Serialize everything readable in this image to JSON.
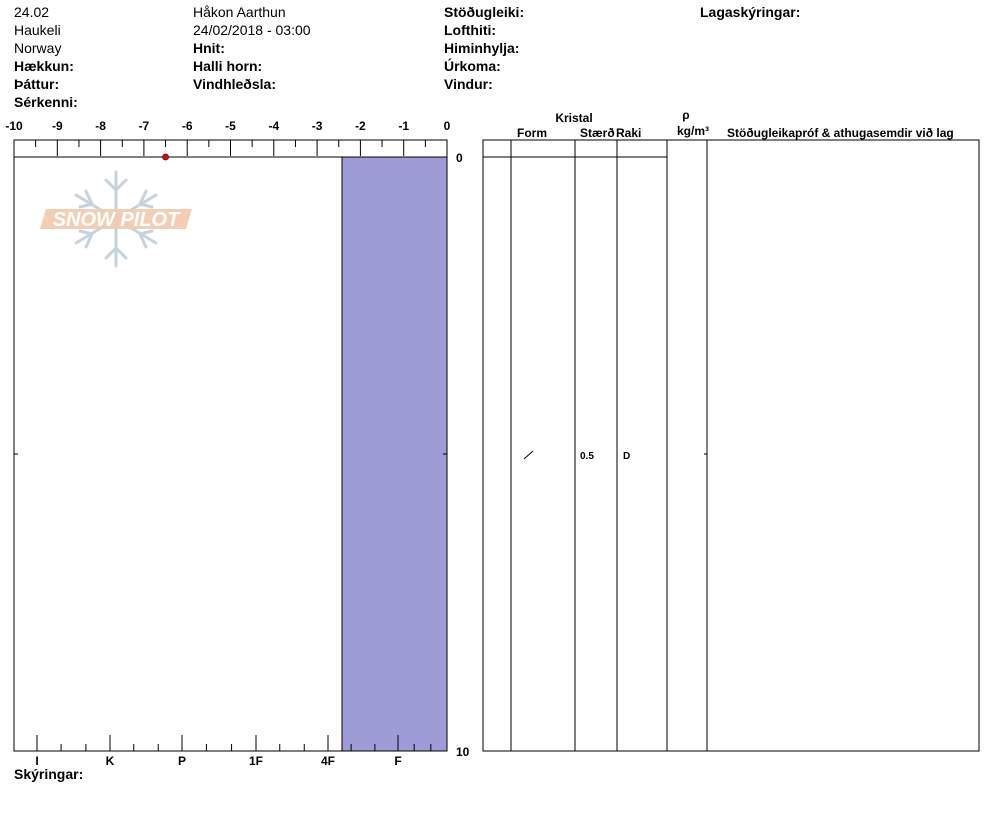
{
  "header": {
    "col1": {
      "date": "24.02",
      "location": "Haukeli",
      "country": "Norway",
      "elevation_label": "Hækkun:",
      "aspect_label": "Þáttur:",
      "features_label": "Sérkenni:"
    },
    "col2": {
      "observer": "Håkon Aarthun",
      "datetime": "24/02/2018 - 03:00",
      "coords_label": "Hnit:",
      "slope_label": "Halli horn:",
      "wind_loading_label": "Vindhleðsla:"
    },
    "col3": {
      "stability_label": "Stöðugleiki:",
      "air_temp_label": "Lofthiti:",
      "sky_label": "Himinhylja:",
      "precip_label": "Úrkoma:",
      "wind_label": "Vindur:"
    },
    "col4": {
      "layer_notes_label": "Lagaskýringar:"
    }
  },
  "footer": {
    "notes_label": "Skýringar:"
  },
  "logo": {
    "text": "SNOW PILOT"
  },
  "table": {
    "crystal_label": "Kristal",
    "form_label": "Form",
    "size_label": "Stærð",
    "moisture_label": "Raki",
    "density_symbol": "ρ",
    "density_unit": "kg/m³",
    "comments_label": "Stöðugleikapróf & athugasemdir við lag",
    "layer": {
      "form_symbol": "/",
      "size": "0.5",
      "moisture": "D"
    }
  },
  "colors": {
    "hardness_fill": "#9d9cd6",
    "temp_point": "#cc1111",
    "logo_orange": "#f2c9ad",
    "logo_blue": "#c5d3de"
  },
  "chart_data": {
    "type": "bar",
    "temperature_axis": {
      "ticks": [
        -10,
        -9,
        -8,
        -7,
        -6,
        -5,
        -4,
        -3,
        -2,
        -1,
        0
      ],
      "range": [
        -10,
        0
      ]
    },
    "depth_axis": {
      "range": [
        0,
        10
      ],
      "labels": [
        "0",
        "10"
      ]
    },
    "hardness_axis": {
      "labels": [
        "I",
        "K",
        "P",
        "1F",
        "4F",
        "F"
      ]
    },
    "temperature_points": [
      {
        "temp": -6.5,
        "depth": 0
      }
    ],
    "hardness_layers": [
      {
        "top": 0,
        "bottom": 10,
        "hardness_index": 4.2
      }
    ]
  }
}
